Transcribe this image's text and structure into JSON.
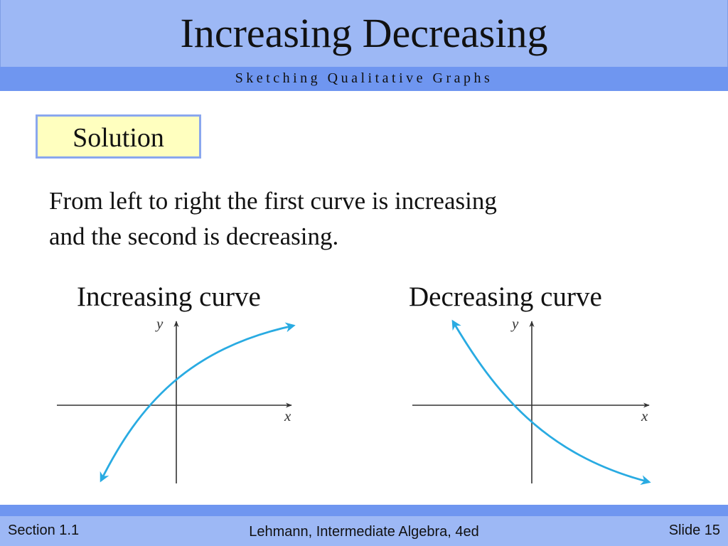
{
  "slide": {
    "title": "Increasing Decreasing",
    "subtitle": "Sketching Qualitative Graphs",
    "solution_label": "Solution",
    "body_line1": "From left to right the first curve is increasing",
    "body_line2": "and the second is decreasing."
  },
  "graphs": {
    "increasing": {
      "label": "Increasing curve",
      "x_axis_label": "x",
      "y_axis_label": "y"
    },
    "decreasing": {
      "label": "Decreasing curve",
      "x_axis_label": "x",
      "y_axis_label": "y"
    }
  },
  "footer": {
    "section": "Section 1.1",
    "book": "Lehmann, Intermediate Algebra, 4ed",
    "slide_number": "Slide 15"
  },
  "colors": {
    "title_bar": "#9db8f5",
    "subtitle_bar": "#6f96f0",
    "solution_fill": "#ffffbf",
    "curve": "#29abe2"
  }
}
